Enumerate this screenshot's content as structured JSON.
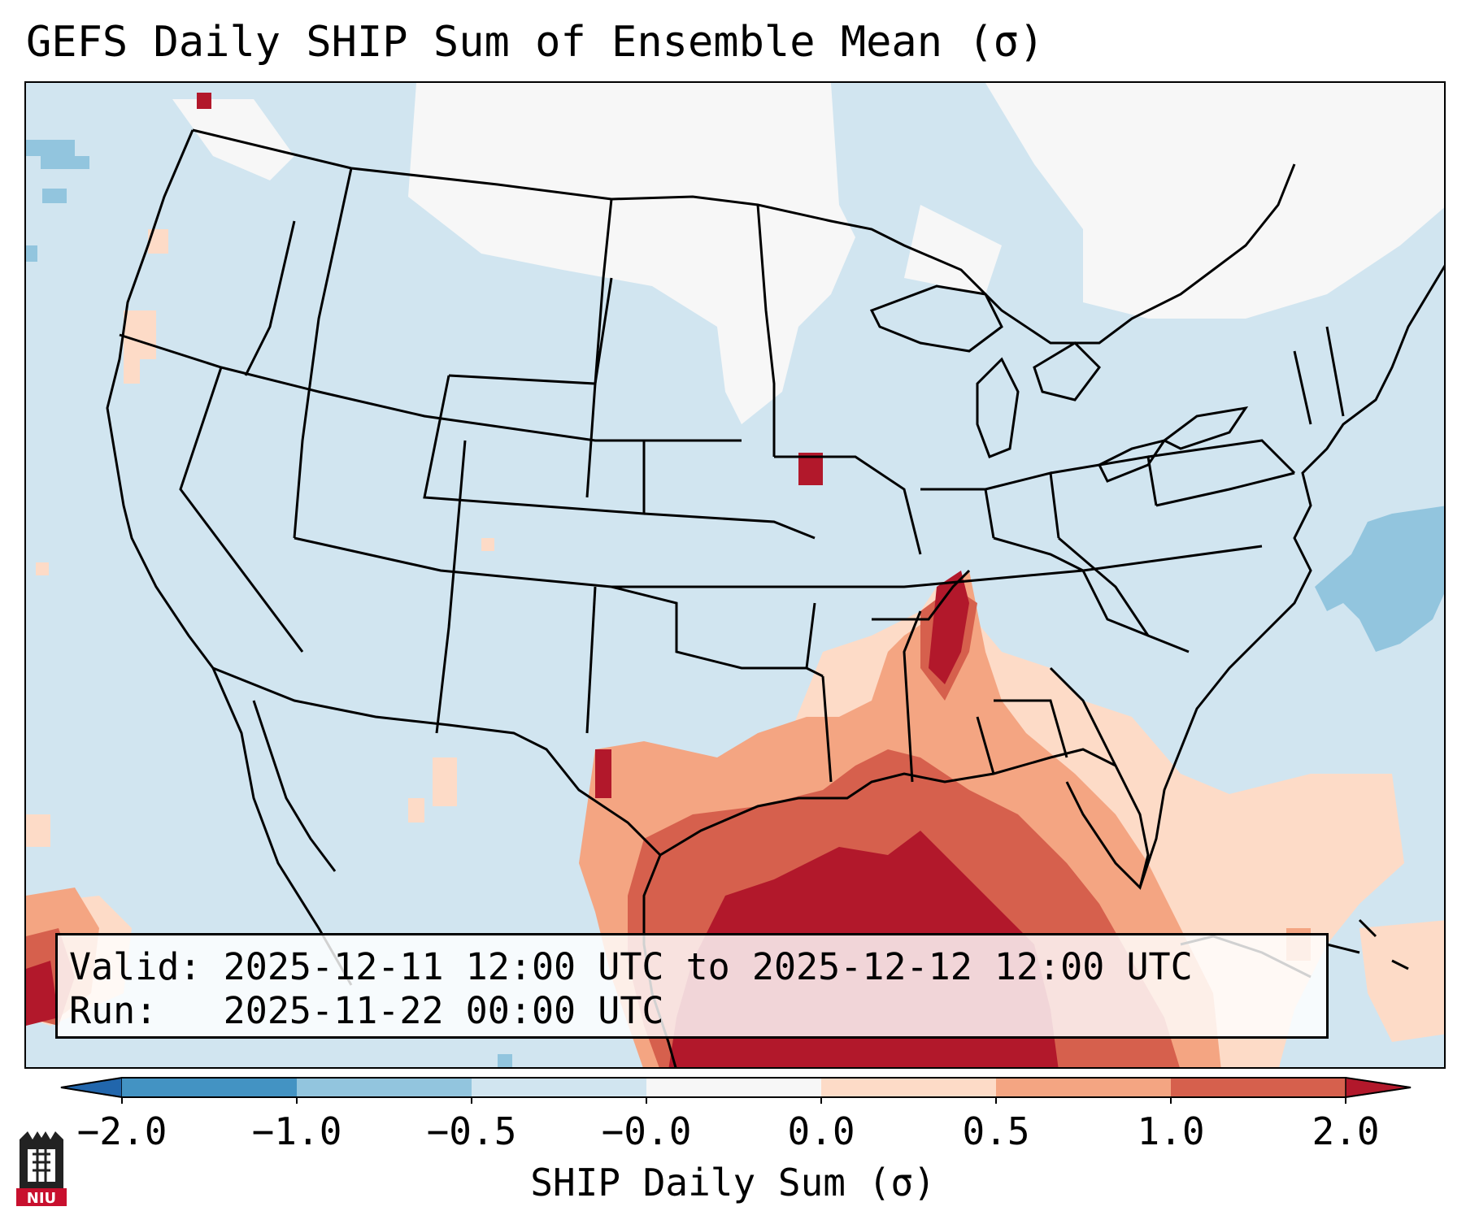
{
  "title": "GEFS Daily SHIP Sum of Ensemble Mean (σ)",
  "info": {
    "valid_label": "Valid:",
    "valid_value": "2025-12-11 12:00 UTC to 2025-12-12 12:00 UTC",
    "run_label": "Run:",
    "run_value": "2025-11-22 00:00 UTC"
  },
  "colorbar": {
    "label": "SHIP Daily Sum (σ)",
    "ticks": [
      "−2.0",
      "−1.0",
      "−0.5",
      "−0.0",
      "0.0",
      "0.5",
      "1.0",
      "2.0"
    ],
    "bins": [
      {
        "range": "< -2.0",
        "color": "#2166ac"
      },
      {
        "range": "-2.0 to -1.0",
        "color": "#4393c3"
      },
      {
        "range": "-1.0 to -0.5",
        "color": "#92c5de"
      },
      {
        "range": "-0.5 to -0.0",
        "color": "#d1e5f0"
      },
      {
        "range": "-0.0 to 0.0",
        "color": "#f7f7f7"
      },
      {
        "range": "0.0 to 0.5",
        "color": "#fddbc7"
      },
      {
        "range": "0.5 to 1.0",
        "color": "#f4a582"
      },
      {
        "range": "1.0 to 2.0",
        "color": "#d6604d"
      },
      {
        "range": "> 2.0",
        "color": "#b2182b"
      }
    ]
  },
  "logo": {
    "text": "NIU",
    "color": "#c8102e"
  }
}
